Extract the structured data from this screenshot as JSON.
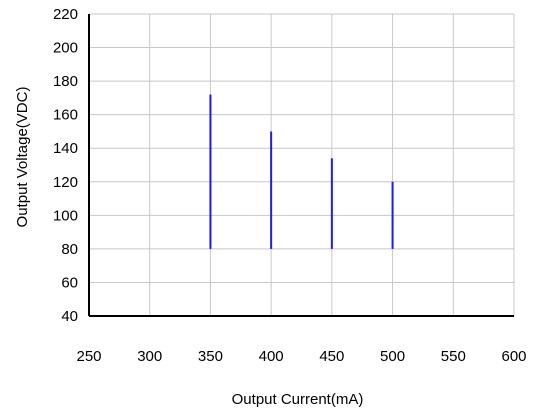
{
  "chart_data": {
    "type": "bar",
    "title": "",
    "xlabel": "Output Current(mA)",
    "ylabel": "Output Voltage(VDC)",
    "xlim": [
      250,
      600
    ],
    "ylim": [
      40,
      220
    ],
    "x_ticks": [
      250,
      300,
      350,
      400,
      450,
      500,
      550,
      600
    ],
    "y_ticks": [
      40,
      60,
      80,
      100,
      120,
      140,
      160,
      180,
      200,
      220
    ],
    "grid": true,
    "series": [
      {
        "color": "#1f1fd6",
        "ranges": [
          {
            "x": 350,
            "y_low": 80,
            "y_high": 172
          },
          {
            "x": 400,
            "y_low": 80,
            "y_high": 150
          },
          {
            "x": 450,
            "y_low": 80,
            "y_high": 134
          },
          {
            "x": 500,
            "y_low": 80,
            "y_high": 120
          }
        ]
      }
    ]
  }
}
